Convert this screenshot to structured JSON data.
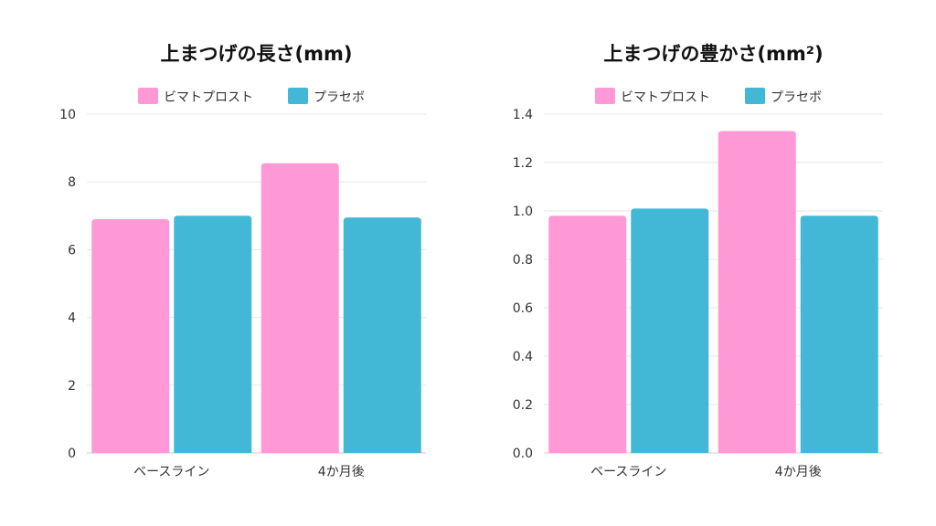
{
  "chart_data": [
    {
      "type": "bar",
      "title": "上まつげの長さ(mm)",
      "categories": [
        "ベースライン",
        "4か月後"
      ],
      "series": [
        {
          "name": "ビマトプロスト",
          "values": [
            6.9,
            8.55
          ],
          "color": "#ff99d6"
        },
        {
          "name": "プラセボ",
          "values": [
            7.0,
            6.95
          ],
          "color": "#42b8d6"
        }
      ],
      "ylim": [
        0,
        10
      ],
      "yticks": [
        "0",
        "2",
        "4",
        "6",
        "8",
        "10"
      ],
      "grid": true,
      "legend": "top"
    },
    {
      "type": "bar",
      "title": "上まつげの豊かさ(mm²)",
      "categories": [
        "ベースライン",
        "4か月後"
      ],
      "series": [
        {
          "name": "ビマトプロスト",
          "values": [
            0.98,
            1.33
          ],
          "color": "#ff99d6"
        },
        {
          "name": "プラセボ",
          "values": [
            1.01,
            0.98
          ],
          "color": "#42b8d6"
        }
      ],
      "ylim": [
        0,
        1.4
      ],
      "yticks": [
        "0.0",
        "0.2",
        "0.4",
        "0.6",
        "0.8",
        "1.0",
        "1.2",
        "1.4"
      ],
      "grid": true,
      "legend": "top"
    }
  ]
}
